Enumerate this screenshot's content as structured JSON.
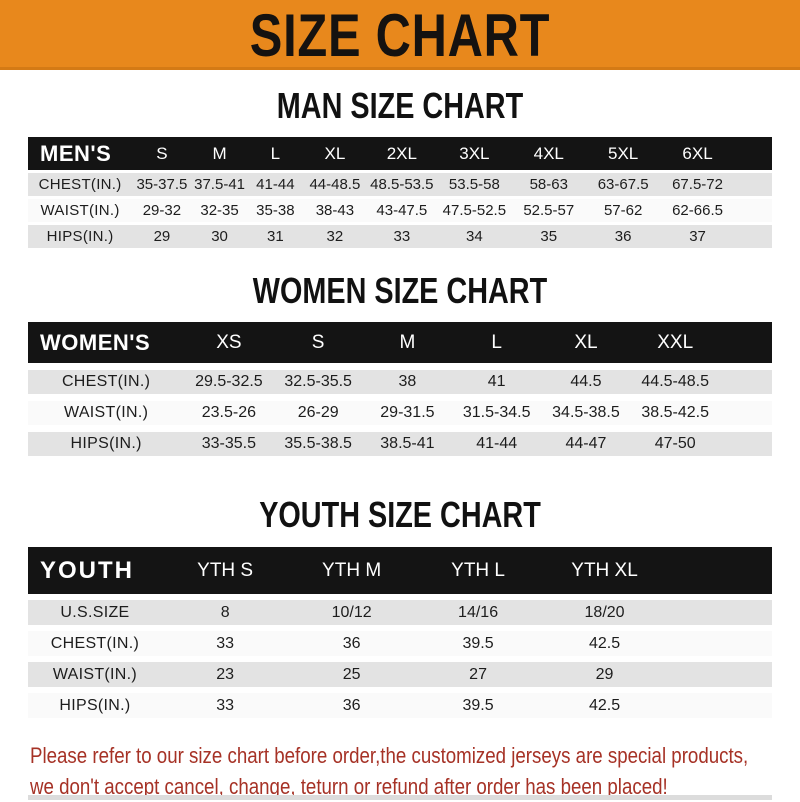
{
  "banner": {
    "title": "SIZE CHART"
  },
  "colors": {
    "banner_bg": "#E8881C",
    "header_bar": "#141414",
    "row_shade": "#E3E3E3",
    "footer_text": "#A63226"
  },
  "tables": [
    {
      "heading": "MAN SIZE CHART",
      "header_label": "MEN'S",
      "columns": [
        "S",
        "M",
        "L",
        "XL",
        "2XL",
        "3XL",
        "4XL",
        "5XL",
        "6XL"
      ],
      "rows": [
        {
          "label": "CHEST(IN.)",
          "values": [
            "35-37.5",
            "37.5-41",
            "41-44",
            "44-48.5",
            "48.5-53.5",
            "53.5-58",
            "58-63",
            "63-67.5",
            "67.5-72"
          ]
        },
        {
          "label": "WAIST(IN.)",
          "values": [
            "29-32",
            "32-35",
            "35-38",
            "38-43",
            "43-47.5",
            "47.5-52.5",
            "52.5-57",
            "57-62",
            "62-66.5"
          ]
        },
        {
          "label": "HIPS(IN.)",
          "values": [
            "29",
            "30",
            "31",
            "32",
            "33",
            "34",
            "35",
            "36",
            "37"
          ]
        }
      ]
    },
    {
      "heading": "WOMEN SIZE CHART",
      "header_label": "WOMEN'S",
      "columns": [
        "XS",
        "S",
        "M",
        "L",
        "XL",
        "XXL"
      ],
      "rows": [
        {
          "label": "CHEST(IN.)",
          "values": [
            "29.5-32.5",
            "32.5-35.5",
            "38",
            "41",
            "44.5",
            "44.5-48.5"
          ]
        },
        {
          "label": "WAIST(IN.)",
          "values": [
            "23.5-26",
            "26-29",
            "29-31.5",
            "31.5-34.5",
            "34.5-38.5",
            "38.5-42.5"
          ]
        },
        {
          "label": "HIPS(IN.)",
          "values": [
            "33-35.5",
            "35.5-38.5",
            "38.5-41",
            "41-44",
            "44-47",
            "47-50"
          ]
        }
      ]
    },
    {
      "heading": "YOUTH SIZE CHART",
      "header_label": "YOUTH",
      "columns": [
        "YTH S",
        "YTH M",
        "YTH L",
        "YTH XL"
      ],
      "rows": [
        {
          "label": "U.S.SIZE",
          "values": [
            "8",
            "10/12",
            "14/16",
            "18/20"
          ]
        },
        {
          "label": "CHEST(IN.)",
          "values": [
            "33",
            "36",
            "39.5",
            "42.5"
          ]
        },
        {
          "label": "WAIST(IN.)",
          "values": [
            "23",
            "25",
            "27",
            "29"
          ]
        },
        {
          "label": "HIPS(IN.)",
          "values": [
            "33",
            "36",
            "39.5",
            "42.5"
          ]
        }
      ]
    }
  ],
  "footer": {
    "line1": "Please refer to our size chart before order,the customized jerseys are special products,",
    "line2": "we don't accept cancel, change, teturn or refund after order has been placed!"
  }
}
